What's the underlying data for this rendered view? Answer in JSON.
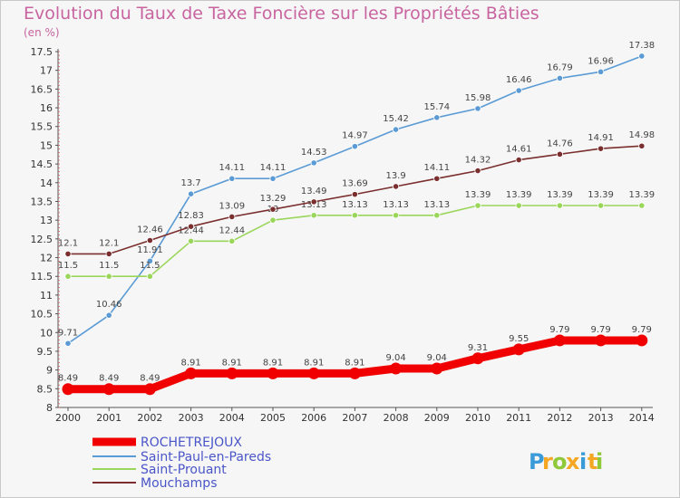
{
  "header": {
    "title": "Evolution du Taux de Taxe Foncière sur les Propriétés Bâties",
    "unit": "(en %)"
  },
  "brand": {
    "letters": [
      "P",
      "r",
      "o",
      "x",
      "i",
      "t",
      "i"
    ],
    "colors": [
      "#3b9ad8",
      "#f5a623",
      "#8fc93a",
      "#f5a623",
      "#3b9ad8",
      "#f5a623",
      "#8fc93a"
    ]
  },
  "chart_data": {
    "type": "line",
    "title": "Evolution du Taux de Taxe Foncière sur les Propriétés Bâties",
    "ylabel": "(en %)",
    "xlabel": "",
    "x": [
      "2000",
      "2001",
      "2002",
      "2003",
      "2004",
      "2005",
      "2006",
      "2007",
      "2008",
      "2009",
      "2010",
      "2011",
      "2012",
      "2013",
      "2014"
    ],
    "ylim": [
      8,
      17.5
    ],
    "yticks": [
      "8",
      "8.5",
      "9",
      "9.5",
      "10",
      "10.5",
      "11",
      "11.5",
      "12",
      "12.5",
      "13",
      "13.5",
      "14",
      "14.5",
      "15",
      "15.5",
      "16",
      "16.5",
      "17",
      "17.5"
    ],
    "grid": false,
    "legend_position": "bottom-left",
    "series": [
      {
        "name": "ROCHETREJOUX",
        "color": "#f00000",
        "thick": true,
        "values": [
          8.49,
          8.49,
          8.49,
          8.91,
          8.91,
          8.91,
          8.91,
          8.91,
          9.04,
          9.04,
          9.31,
          9.55,
          9.79,
          9.79,
          9.79
        ],
        "labels": [
          "8.49",
          "8.49",
          "8.49",
          "8.91",
          "8.91",
          "8.91",
          "8.91",
          "8.91",
          "9.04",
          "9.04",
          "9.31",
          "9.55",
          "9.79",
          "9.79",
          "9.79"
        ]
      },
      {
        "name": "Saint-Paul-en-Pareds",
        "color": "#5b9bd5",
        "thick": false,
        "values": [
          9.71,
          10.46,
          11.91,
          13.7,
          14.11,
          14.11,
          14.53,
          14.97,
          15.42,
          15.74,
          15.98,
          16.46,
          16.79,
          16.96,
          17.38
        ],
        "labels": [
          "9.71",
          "10.46",
          "11.91",
          "13.7",
          "14.11",
          "14.11",
          "14.53",
          "14.97",
          "15.42",
          "15.74",
          "15.98",
          "16.46",
          "16.79",
          "16.96",
          "17.38"
        ]
      },
      {
        "name": "Saint-Prouant",
        "color": "#9ad65a",
        "thick": false,
        "values": [
          11.5,
          11.5,
          11.5,
          12.44,
          12.44,
          13.0,
          13.13,
          13.13,
          13.13,
          13.13,
          13.39,
          13.39,
          13.39,
          13.39,
          13.39
        ],
        "labels": [
          "11.5",
          "11.5",
          "11.5",
          "12.44",
          "12.44",
          "13",
          "13.13",
          "13.13",
          "13.13",
          "13.13",
          "13.39",
          "13.39",
          "13.39",
          "13.39",
          "13.39"
        ]
      },
      {
        "name": "Mouchamps",
        "color": "#7a2e2e",
        "thick": false,
        "values": [
          12.1,
          12.1,
          12.46,
          12.83,
          13.09,
          13.29,
          13.49,
          13.69,
          13.9,
          14.11,
          14.32,
          14.61,
          14.76,
          14.91,
          14.98
        ],
        "labels": [
          "12.1",
          "12.1",
          "12.46",
          "12.83",
          "13.09",
          "13.29",
          "13.49",
          "13.69",
          "13.9",
          "14.11",
          "14.32",
          "14.61",
          "14.76",
          "14.91",
          "14.98"
        ]
      }
    ]
  }
}
